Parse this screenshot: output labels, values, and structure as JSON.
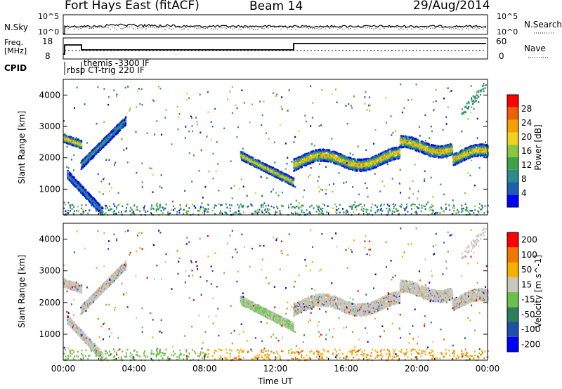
{
  "header": {
    "radar": "Fort Hays East (fitACF)",
    "beam": "Beam 14",
    "date": "29/Aug/2014"
  },
  "nsky_panel": {
    "left_label": "N.Sky",
    "right_label": "N.Search",
    "left_ticks": [
      "10^5",
      "10^0"
    ],
    "right_ticks": [
      "10^5",
      "10^0"
    ]
  },
  "freq_panel": {
    "left_label_line1": "Freq.",
    "left_label_line2": "[MHz]",
    "right_label": "Nave",
    "left_ticks": [
      "18",
      "8"
    ],
    "right_ticks": [
      "60",
      "0"
    ]
  },
  "cpid": {
    "label": "CPID",
    "program1": "rbsp CT-trig 220 IF",
    "program2": "themis -3300 IF"
  },
  "x_axis": {
    "title": "Time UT",
    "ticks": [
      "00:00",
      "04:00",
      "08:00",
      "12:00",
      "16:00",
      "20:00",
      "00:00"
    ]
  },
  "chart_data": [
    {
      "type": "heatmap",
      "title": "Power",
      "xlabel": "Time UT",
      "ylabel": "Slant Range [km]",
      "x_range_hours": [
        0,
        24
      ],
      "ylim": [
        180,
        4500
      ],
      "yticks": [
        "1000",
        "2000",
        "3000",
        "4000"
      ],
      "colorbar": {
        "label": "Power [dB]",
        "range": [
          0,
          32
        ],
        "ticks": [
          "4",
          "8",
          "12",
          "16",
          "20",
          "24",
          "28"
        ]
      },
      "echo_bands": [
        {
          "t0": 0.0,
          "t1": 1.0,
          "r_start": 2650,
          "r_end": 2450,
          "power": 24
        },
        {
          "t0": 1.0,
          "t1": 3.5,
          "r_start": 1800,
          "r_end": 3200,
          "power": 12
        },
        {
          "t0": 0.2,
          "t1": 2.2,
          "r_start": 1500,
          "r_end": 300,
          "power": 10
        },
        {
          "t0": 10.0,
          "t1": 13.0,
          "r_start": 2100,
          "r_end": 1250,
          "power": 22
        },
        {
          "t0": 13.0,
          "t1": 24.0,
          "r_start": 1900,
          "r_end": 2100,
          "power": 24
        }
      ]
    },
    {
      "type": "heatmap",
      "title": "Velocity",
      "xlabel": "Time UT",
      "ylabel": "Slant Range [km]",
      "x_range_hours": [
        0,
        24
      ],
      "ylim": [
        180,
        4500
      ],
      "yticks": [
        "1000",
        "2000",
        "3000",
        "4000"
      ],
      "colorbar": {
        "label": "Velocity [m s^-1]",
        "ticks": [
          "200",
          "100",
          "50",
          "15",
          "-15",
          "-50",
          "-100",
          "-200"
        ]
      }
    }
  ],
  "colors": {
    "power_scale": [
      "#0000ff",
      "#1c5fb0",
      "#2e8b8b",
      "#3fa04a",
      "#8cc63f",
      "#f0d020",
      "#f5a000",
      "#f06000",
      "#ff0000"
    ],
    "velocity_scale": [
      "#0000ff",
      "#1f4fa8",
      "#2e7d5b",
      "#6cc04a",
      "#c8c8c0",
      "#f5b000",
      "#f07800",
      "#ff0000"
    ]
  }
}
